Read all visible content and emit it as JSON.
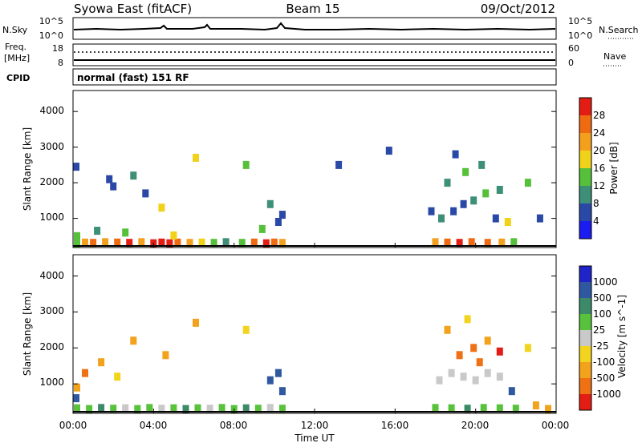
{
  "header": {
    "station": "Syowa East (fitACF)",
    "beam": "Beam 15",
    "date": "09/Oct/2012"
  },
  "nsky_panel": {
    "left_label": "N.Sky",
    "left_ticks": [
      "10^5",
      "10^0"
    ],
    "right_label": "N.Search",
    "right_ticks": [
      "10^5",
      "10^0"
    ]
  },
  "freq_panel": {
    "left_label_1": "Freq.",
    "left_label_2": "[MHz]",
    "left_ticks": [
      "18",
      "8"
    ],
    "right_label": "Nave",
    "right_ticks": [
      "60",
      "0"
    ]
  },
  "cpid_panel": {
    "label": "CPID",
    "text": "normal (fast) 151 RF"
  },
  "chart_data": [
    {
      "type": "heatmap",
      "quantity": "Power",
      "ylabel": "Slant Range [km]",
      "xlabel": "Time UT",
      "ylim": [
        180,
        4590
      ],
      "yticks": [
        "1000",
        "2000",
        "3000",
        "4000"
      ],
      "xticks": [
        "00:00",
        "04:00",
        "08:00",
        "12:00",
        "16:00",
        "20:00",
        "00:00"
      ],
      "colorbar_label": "Power [dB]",
      "colorbar_ticks": [
        "28",
        "24",
        "20",
        "16",
        "12",
        "8",
        "4"
      ],
      "colors": [
        "#1b1cf0",
        "#2a49a6",
        "#3e8f78",
        "#56c03a",
        "#f0d21a",
        "#f3a01f",
        "#f06a12",
        "#e31d14"
      ],
      "cells": [
        [
          0.2,
          300,
          3
        ],
        [
          0.6,
          320,
          5
        ],
        [
          1.0,
          310,
          6
        ],
        [
          1.6,
          330,
          5
        ],
        [
          2.2,
          320,
          6
        ],
        [
          2.8,
          310,
          7
        ],
        [
          3.4,
          330,
          5
        ],
        [
          4.0,
          300,
          7
        ],
        [
          4.4,
          320,
          7
        ],
        [
          4.8,
          300,
          7
        ],
        [
          5.2,
          320,
          6
        ],
        [
          5.8,
          310,
          5
        ],
        [
          6.4,
          320,
          4
        ],
        [
          7.0,
          310,
          3
        ],
        [
          7.6,
          330,
          2
        ],
        [
          8.4,
          310,
          3
        ],
        [
          9.0,
          320,
          6
        ],
        [
          9.6,
          300,
          7
        ],
        [
          10.0,
          320,
          6
        ],
        [
          10.4,
          310,
          5
        ],
        [
          0.2,
          500,
          3
        ],
        [
          1.2,
          650,
          2
        ],
        [
          2.6,
          600,
          3
        ],
        [
          5.0,
          520,
          4
        ],
        [
          9.4,
          700,
          3
        ],
        [
          10.2,
          900,
          1
        ],
        [
          10.4,
          1100,
          1
        ],
        [
          0.1,
          2450,
          1
        ],
        [
          1.8,
          2100,
          1
        ],
        [
          2.0,
          1900,
          1
        ],
        [
          3.0,
          2200,
          2
        ],
        [
          3.6,
          1700,
          1
        ],
        [
          4.4,
          1300,
          4
        ],
        [
          6.1,
          2700,
          4
        ],
        [
          8.6,
          2500,
          3
        ],
        [
          9.8,
          1400,
          2
        ],
        [
          13.2,
          2500,
          1
        ],
        [
          15.7,
          2900,
          1
        ],
        [
          18.0,
          330,
          5
        ],
        [
          18.6,
          320,
          6
        ],
        [
          19.2,
          310,
          7
        ],
        [
          19.8,
          330,
          6
        ],
        [
          20.6,
          310,
          6
        ],
        [
          21.3,
          320,
          5
        ],
        [
          21.9,
          330,
          3
        ],
        [
          17.8,
          1200,
          1
        ],
        [
          18.3,
          1000,
          2
        ],
        [
          18.9,
          1200,
          1
        ],
        [
          19.4,
          1400,
          1
        ],
        [
          19.9,
          1500,
          2
        ],
        [
          20.5,
          1700,
          3
        ],
        [
          21.2,
          1800,
          2
        ],
        [
          18.6,
          2000,
          2
        ],
        [
          19.5,
          2300,
          3
        ],
        [
          20.3,
          2500,
          2
        ],
        [
          19.0,
          2800,
          1
        ],
        [
          21.0,
          1000,
          1
        ],
        [
          21.6,
          900,
          4
        ],
        [
          22.6,
          2000,
          3
        ],
        [
          23.2,
          1000,
          1
        ]
      ]
    },
    {
      "type": "heatmap",
      "quantity": "Velocity",
      "ylabel": "Slant Range [km]",
      "xlabel": "Time UT",
      "ylim": [
        180,
        4590
      ],
      "yticks": [
        "1000",
        "2000",
        "3000",
        "4000"
      ],
      "xticks": [
        "00:00",
        "04:00",
        "08:00",
        "12:00",
        "16:00",
        "20:00",
        "00:00"
      ],
      "colorbar_label": "Velocity [m s^-1]",
      "colorbar_ticks": [
        "1000",
        "500",
        "100",
        "25",
        "-25",
        "-100",
        "-500",
        "-1000"
      ],
      "colors": [
        "#1e24c8",
        "#2f58a0",
        "#3d8a6a",
        "#59c23d",
        "#c9c9c9",
        "#f2d41f",
        "#f3a21c",
        "#f07014",
        "#e31d14"
      ],
      "cells": [
        [
          0.2,
          320,
          3
        ],
        [
          0.8,
          300,
          3
        ],
        [
          1.4,
          330,
          2
        ],
        [
          2.0,
          310,
          3
        ],
        [
          2.6,
          320,
          4
        ],
        [
          3.2,
          300,
          3
        ],
        [
          3.8,
          330,
          3
        ],
        [
          4.4,
          310,
          4
        ],
        [
          5.0,
          320,
          3
        ],
        [
          5.6,
          300,
          2
        ],
        [
          6.2,
          320,
          3
        ],
        [
          6.8,
          310,
          4
        ],
        [
          7.4,
          330,
          3
        ],
        [
          8.0,
          300,
          3
        ],
        [
          8.6,
          320,
          2
        ],
        [
          9.2,
          310,
          3
        ],
        [
          9.8,
          330,
          4
        ],
        [
          10.4,
          310,
          3
        ],
        [
          0.2,
          900,
          6
        ],
        [
          0.6,
          1300,
          7
        ],
        [
          1.4,
          1600,
          6
        ],
        [
          2.2,
          1200,
          5
        ],
        [
          3.0,
          2200,
          6
        ],
        [
          4.6,
          1800,
          6
        ],
        [
          6.1,
          2700,
          6
        ],
        [
          8.6,
          2500,
          5
        ],
        [
          9.8,
          1100,
          1
        ],
        [
          10.2,
          1300,
          1
        ],
        [
          10.4,
          800,
          1
        ],
        [
          0.1,
          600,
          1
        ],
        [
          18.0,
          330,
          3
        ],
        [
          18.8,
          320,
          3
        ],
        [
          19.6,
          310,
          2
        ],
        [
          20.4,
          330,
          3
        ],
        [
          21.2,
          320,
          3
        ],
        [
          22.0,
          310,
          3
        ],
        [
          18.2,
          1100,
          4
        ],
        [
          18.8,
          1300,
          4
        ],
        [
          19.4,
          1200,
          4
        ],
        [
          20.0,
          1100,
          4
        ],
        [
          20.6,
          1300,
          4
        ],
        [
          21.2,
          1200,
          4
        ],
        [
          19.2,
          1800,
          7
        ],
        [
          19.9,
          2000,
          7
        ],
        [
          20.6,
          2200,
          6
        ],
        [
          21.2,
          1900,
          8
        ],
        [
          20.2,
          1600,
          7
        ],
        [
          18.6,
          2500,
          6
        ],
        [
          19.6,
          2800,
          5
        ],
        [
          21.8,
          800,
          1
        ],
        [
          23.0,
          400,
          6
        ],
        [
          23.6,
          300,
          6
        ],
        [
          22.6,
          2000,
          5
        ]
      ]
    }
  ]
}
